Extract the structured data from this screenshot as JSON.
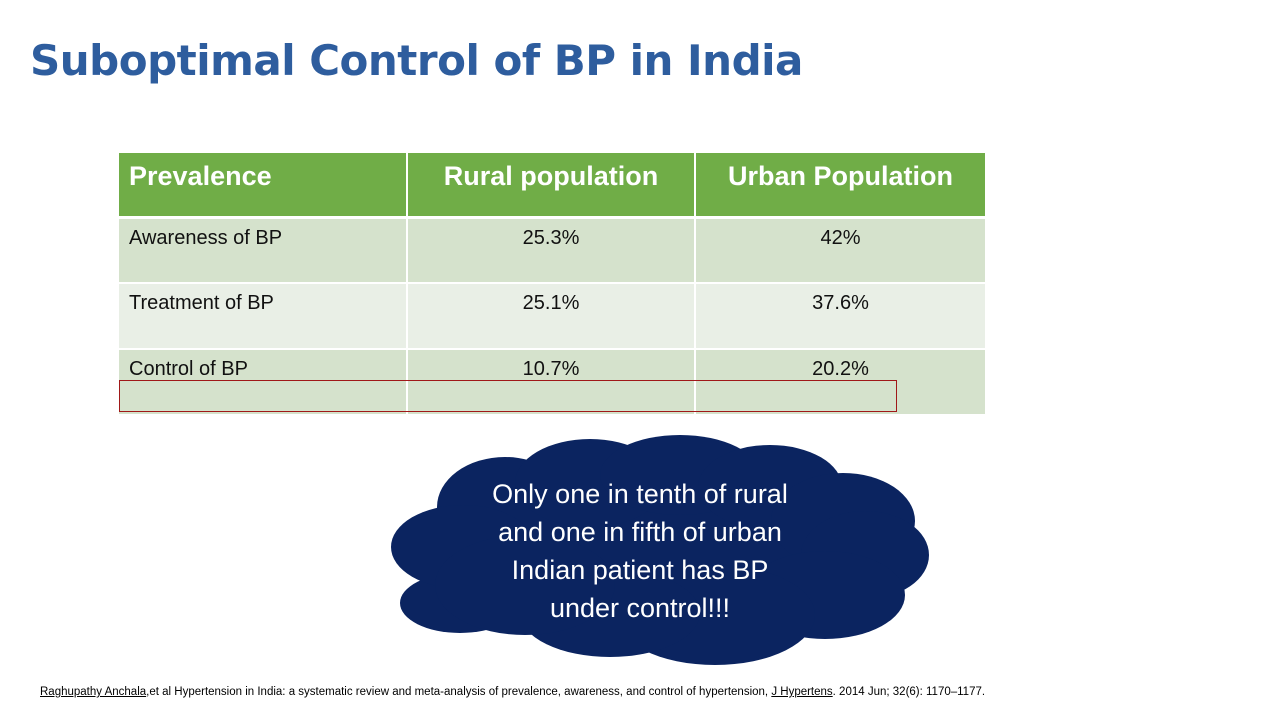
{
  "slide": {
    "title": "Suboptimal Control of BP in India"
  },
  "table": {
    "headers": [
      "Prevalence",
      "Rural population",
      "Urban Population"
    ],
    "rows": [
      {
        "label": "Awareness of BP",
        "rural": "25.3%",
        "urban": "42%"
      },
      {
        "label": "Treatment of BP",
        "rural": "25.1%",
        "urban": "37.6%"
      },
      {
        "label": "Control of BP",
        "rural": "10.7%",
        "urban": "20.2%"
      }
    ]
  },
  "callout": {
    "lines": [
      "Only one in tenth of rural",
      "and one in fifth of urban",
      "Indian patient has BP",
      "under control!!!"
    ]
  },
  "reference": {
    "author": "Raghupathy Anchala",
    "title_text": ",et al Hypertension in India: a systematic review and meta-analysis of prevalence, awareness, and control of hypertension,",
    "journal": "J Hypertens",
    "details": ". 2014 Jun; 32(6): 1170–1177."
  },
  "colors": {
    "title": "#2e5d9e",
    "header_bg": "#70ad47",
    "row_odd": "#d5e2cc",
    "row_even": "#e9efe6",
    "cloud_fill": "#0b2460",
    "highlight_border": "#a01818"
  }
}
